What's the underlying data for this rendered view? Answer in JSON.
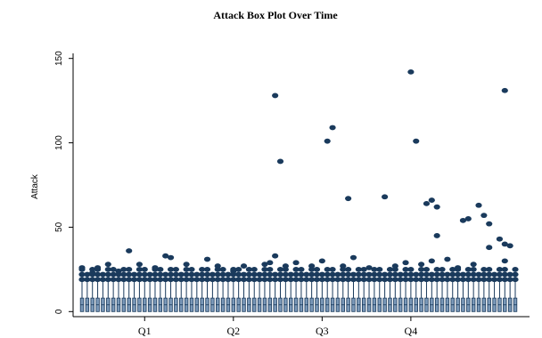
{
  "chart_data": {
    "type": "box",
    "title": "Attack Box Plot Over Time",
    "xlabel": "",
    "ylabel": "Attack",
    "ylim": [
      -3,
      153
    ],
    "y_ticks": [
      0,
      50,
      100,
      150
    ],
    "x_ticks": [
      "Q1",
      "Q2",
      "Q3",
      "Q4"
    ],
    "x_tick_positions": [
      12,
      29,
      46,
      63
    ],
    "n_boxes": 84,
    "box_stats": {
      "min": 0,
      "q1": 0,
      "median": 4,
      "q3": 8,
      "whisker_high": 18
    },
    "box_color": "#7a98b8",
    "box_edge_color": "#1a3a5c",
    "outlier_color": "#1a3a5c",
    "cluster_outliers": [
      19,
      22,
      25
    ],
    "outliers": [
      {
        "box": 0,
        "value": 26
      },
      {
        "box": 2,
        "value": 23
      },
      {
        "box": 3,
        "value": 26
      },
      {
        "box": 5,
        "value": 28
      },
      {
        "box": 7,
        "value": 24
      },
      {
        "box": 9,
        "value": 36
      },
      {
        "box": 11,
        "value": 28
      },
      {
        "box": 14,
        "value": 26
      },
      {
        "box": 16,
        "value": 33
      },
      {
        "box": 17,
        "value": 32
      },
      {
        "box": 20,
        "value": 28
      },
      {
        "box": 24,
        "value": 31
      },
      {
        "box": 26,
        "value": 27
      },
      {
        "box": 29,
        "value": 24
      },
      {
        "box": 31,
        "value": 27
      },
      {
        "box": 35,
        "value": 28
      },
      {
        "box": 36,
        "value": 29
      },
      {
        "box": 37,
        "value": 128
      },
      {
        "box": 37,
        "value": 33
      },
      {
        "box": 38,
        "value": 89
      },
      {
        "box": 39,
        "value": 27
      },
      {
        "box": 41,
        "value": 29
      },
      {
        "box": 44,
        "value": 27
      },
      {
        "box": 46,
        "value": 30
      },
      {
        "box": 47,
        "value": 101
      },
      {
        "box": 48,
        "value": 109
      },
      {
        "box": 50,
        "value": 27
      },
      {
        "box": 51,
        "value": 67
      },
      {
        "box": 52,
        "value": 32
      },
      {
        "box": 55,
        "value": 26
      },
      {
        "box": 58,
        "value": 68
      },
      {
        "box": 60,
        "value": 27
      },
      {
        "box": 62,
        "value": 29
      },
      {
        "box": 63,
        "value": 142
      },
      {
        "box": 64,
        "value": 101
      },
      {
        "box": 65,
        "value": 28
      },
      {
        "box": 66,
        "value": 64
      },
      {
        "box": 67,
        "value": 66
      },
      {
        "box": 67,
        "value": 30
      },
      {
        "box": 68,
        "value": 62
      },
      {
        "box": 68,
        "value": 45
      },
      {
        "box": 70,
        "value": 31
      },
      {
        "box": 72,
        "value": 26
      },
      {
        "box": 73,
        "value": 54
      },
      {
        "box": 74,
        "value": 55
      },
      {
        "box": 75,
        "value": 28
      },
      {
        "box": 76,
        "value": 63
      },
      {
        "box": 77,
        "value": 57
      },
      {
        "box": 78,
        "value": 52
      },
      {
        "box": 78,
        "value": 38
      },
      {
        "box": 80,
        "value": 43
      },
      {
        "box": 81,
        "value": 131
      },
      {
        "box": 81,
        "value": 40
      },
      {
        "box": 81,
        "value": 30
      },
      {
        "box": 82,
        "value": 39
      }
    ]
  }
}
